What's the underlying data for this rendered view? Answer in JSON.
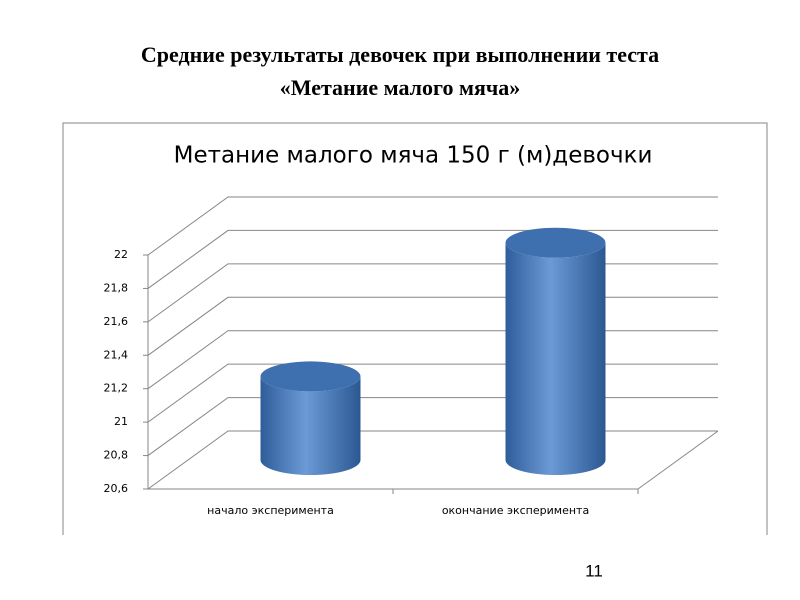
{
  "slide_title_line1": "Средние результаты девочек при выполнении теста",
  "slide_title_line2": "«Метание малого мяча»",
  "page_number": "11",
  "chart_data": {
    "type": "bar",
    "title": "Метание малого мяча 150 г (м)девочки",
    "categories": [
      "начало эксперимента",
      "окончание эксперимента"
    ],
    "values": [
      21.1,
      21.9
    ],
    "color": "#4a7ebf",
    "ylim": [
      20.6,
      22
    ],
    "yticks": [
      {
        "value": 20.6,
        "label": "20,6"
      },
      {
        "value": 20.8,
        "label": "20,8"
      },
      21,
      {
        "value": 21.2,
        "label": "21,2"
      },
      {
        "value": 21.4,
        "label": "21,4"
      },
      {
        "value": 21.6,
        "label": "21,6"
      },
      {
        "value": 21.8,
        "label": "21,8"
      },
      22
    ],
    "grid": true
  }
}
